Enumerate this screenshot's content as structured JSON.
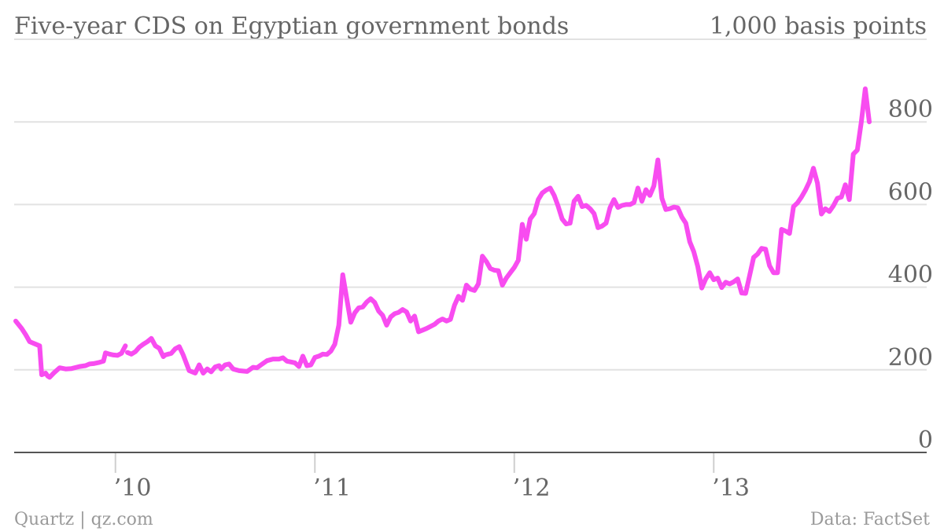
{
  "chart_data": {
    "type": "line",
    "title": "Five-year CDS on Egyptian government bonds",
    "unit_label": "1,000 basis points",
    "ylim": [
      0,
      1000
    ],
    "y_ticks": [
      0,
      200,
      400,
      600,
      800
    ],
    "x_ticks": [
      {
        "label": "’10",
        "value": 2010.0
      },
      {
        "label": "’11",
        "value": 2011.0
      },
      {
        "label": "’12",
        "value": 2012.0
      },
      {
        "label": "’13",
        "value": 2013.0
      }
    ],
    "xlim": [
      2009.5,
      2013.75
    ],
    "grid": true,
    "color": "#f84cf0",
    "series": [
      {
        "segments": [
          [
            [
              2009.5,
              318
            ],
            [
              2009.53,
              300
            ],
            [
              2009.55,
              285
            ],
            [
              2009.57,
              268
            ],
            [
              2009.6,
              262
            ],
            [
              2009.62,
              258
            ],
            [
              2009.63,
              188
            ],
            [
              2009.65,
              192
            ],
            [
              2009.66,
              185
            ],
            [
              2009.67,
              182
            ],
            [
              2009.69,
              192
            ],
            [
              2009.72,
              205
            ],
            [
              2009.75,
              202
            ],
            [
              2009.78,
              203
            ],
            [
              2009.82,
              208
            ],
            [
              2009.85,
              210
            ],
            [
              2009.87,
              214
            ],
            [
              2009.89,
              215
            ],
            [
              2009.92,
              218
            ],
            [
              2009.94,
              221
            ],
            [
              2009.95,
              241
            ],
            [
              2009.97,
              238
            ],
            [
              2009.99,
              236
            ],
            [
              2010.01,
              235
            ],
            [
              2010.03,
              240
            ],
            [
              2010.05,
              258
            ]
          ],
          [
            [
              2010.06,
              242
            ],
            [
              2010.08,
              238
            ],
            [
              2010.1,
              244
            ],
            [
              2010.12,
              255
            ],
            [
              2010.14,
              262
            ],
            [
              2010.16,
              268
            ],
            [
              2010.18,
              276
            ],
            [
              2010.2,
              258
            ],
            [
              2010.22,
              252
            ],
            [
              2010.24,
              232
            ],
            [
              2010.25,
              236
            ],
            [
              2010.28,
              240
            ],
            [
              2010.3,
              251
            ],
            [
              2010.32,
              256
            ],
            [
              2010.34,
              236
            ],
            [
              2010.37,
              198
            ],
            [
              2010.4,
              192
            ],
            [
              2010.42,
              212
            ],
            [
              2010.44,
              192
            ],
            [
              2010.46,
              202
            ],
            [
              2010.48,
              195
            ],
            [
              2010.5,
              207
            ],
            [
              2010.52,
              210
            ],
            [
              2010.53,
              202
            ],
            [
              2010.55,
              212
            ],
            [
              2010.57,
              214
            ],
            [
              2010.59,
              202
            ],
            [
              2010.62,
              198
            ],
            [
              2010.66,
              196
            ],
            [
              2010.69,
              206
            ],
            [
              2010.71,
              205
            ],
            [
              2010.73,
              212
            ],
            [
              2010.76,
              222
            ],
            [
              2010.79,
              226
            ],
            [
              2010.82,
              226
            ],
            [
              2010.84,
              229
            ],
            [
              2010.86,
              221
            ],
            [
              2010.88,
              219
            ],
            [
              2010.9,
              217
            ],
            [
              2010.92,
              208
            ],
            [
              2010.94,
              233
            ],
            [
              2010.96,
              210
            ],
            [
              2010.98,
              212
            ],
            [
              2011.0,
              230
            ],
            [
              2011.02,
              233
            ],
            [
              2011.04,
              238
            ],
            [
              2011.06,
              237
            ],
            [
              2011.08,
              245
            ],
            [
              2011.1,
              262
            ],
            [
              2011.12,
              308
            ],
            [
              2011.14,
              430
            ],
            [
              2011.16,
              372
            ],
            [
              2011.18,
              315
            ],
            [
              2011.2,
              338
            ],
            [
              2011.22,
              350
            ],
            [
              2011.24,
              352
            ],
            [
              2011.26,
              364
            ],
            [
              2011.28,
              372
            ],
            [
              2011.3,
              363
            ],
            [
              2011.32,
              342
            ],
            [
              2011.34,
              332
            ],
            [
              2011.36,
              308
            ],
            [
              2011.38,
              328
            ],
            [
              2011.4,
              336
            ],
            [
              2011.42,
              339
            ],
            [
              2011.44,
              346
            ],
            [
              2011.46,
              340
            ],
            [
              2011.48,
              318
            ],
            [
              2011.5,
              330
            ],
            [
              2011.52,
              292
            ],
            [
              2011.54,
              296
            ],
            [
              2011.56,
              300
            ],
            [
              2011.58,
              305
            ],
            [
              2011.6,
              310
            ],
            [
              2011.62,
              318
            ],
            [
              2011.64,
              323
            ],
            [
              2011.66,
              318
            ],
            [
              2011.68,
              322
            ],
            [
              2011.7,
              356
            ],
            [
              2011.72,
              378
            ],
            [
              2011.74,
              368
            ],
            [
              2011.76,
              405
            ],
            [
              2011.78,
              395
            ],
            [
              2011.8,
              392
            ],
            [
              2011.82,
              408
            ],
            [
              2011.84,
              475
            ],
            [
              2011.86,
              462
            ],
            [
              2011.88,
              445
            ],
            [
              2011.9,
              441
            ],
            [
              2011.92,
              440
            ],
            [
              2011.94,
              405
            ],
            [
              2011.96,
              422
            ],
            [
              2011.98,
              435
            ],
            [
              2012.0,
              448
            ],
            [
              2012.02,
              465
            ],
            [
              2012.04,
              552
            ],
            [
              2012.06,
              516
            ],
            [
              2012.08,
              565
            ],
            [
              2012.1,
              578
            ],
            [
              2012.12,
              612
            ],
            [
              2012.14,
              628
            ],
            [
              2012.16,
              635
            ],
            [
              2012.18,
              640
            ],
            [
              2012.2,
              622
            ],
            [
              2012.22,
              596
            ],
            [
              2012.24,
              565
            ],
            [
              2012.26,
              553
            ],
            [
              2012.28,
              555
            ],
            [
              2012.3,
              608
            ],
            [
              2012.32,
              620
            ],
            [
              2012.34,
              595
            ],
            [
              2012.36,
              598
            ],
            [
              2012.38,
              590
            ],
            [
              2012.4,
              578
            ],
            [
              2012.42,
              544
            ],
            [
              2012.44,
              548
            ],
            [
              2012.46,
              555
            ],
            [
              2012.48,
              592
            ],
            [
              2012.5,
              612
            ],
            [
              2012.52,
              593
            ],
            [
              2012.54,
              598
            ],
            [
              2012.56,
              600
            ],
            [
              2012.58,
              600
            ],
            [
              2012.6,
              605
            ],
            [
              2012.62,
              640
            ],
            [
              2012.64,
              608
            ],
            [
              2012.66,
              636
            ],
            [
              2012.68,
              622
            ],
            [
              2012.7,
              645
            ],
            [
              2012.72,
              708
            ],
            [
              2012.74,
              615
            ],
            [
              2012.76,
              588
            ],
            [
              2012.78,
              590
            ],
            [
              2012.8,
              594
            ],
            [
              2012.82,
              592
            ],
            [
              2012.84,
              570
            ],
            [
              2012.86,
              555
            ],
            [
              2012.88,
              510
            ],
            [
              2012.9,
              486
            ],
            [
              2012.92,
              450
            ],
            [
              2012.94,
              398
            ],
            [
              2012.96,
              420
            ],
            [
              2012.98,
              435
            ],
            [
              2013.0,
              418
            ],
            [
              2013.02,
              422
            ],
            [
              2013.04,
              399
            ],
            [
              2013.06,
              412
            ],
            [
              2013.08,
              408
            ],
            [
              2013.1,
              413
            ],
            [
              2013.12,
              420
            ],
            [
              2013.14,
              386
            ],
            [
              2013.16,
              385
            ],
            [
              2013.18,
              428
            ],
            [
              2013.2,
              472
            ],
            [
              2013.22,
              480
            ],
            [
              2013.24,
              494
            ],
            [
              2013.26,
              492
            ],
            [
              2013.28,
              452
            ],
            [
              2013.3,
              435
            ],
            [
              2013.32,
              435
            ],
            [
              2013.34,
              540
            ],
            [
              2013.36,
              536
            ],
            [
              2013.38,
              530
            ],
            [
              2013.4,
              595
            ],
            [
              2013.42,
              604
            ],
            [
              2013.44,
              618
            ],
            [
              2013.46,
              635
            ],
            [
              2013.48,
              655
            ],
            [
              2013.5,
              688
            ],
            [
              2013.52,
              652
            ],
            [
              2013.54,
              577
            ],
            [
              2013.56,
              590
            ],
            [
              2013.58,
              583
            ],
            [
              2013.6,
              597
            ],
            [
              2013.62,
              615
            ],
            [
              2013.64,
              618
            ],
            [
              2013.66,
              648
            ],
            [
              2013.68,
              612
            ],
            [
              2013.7,
              722
            ],
            [
              2013.72,
              732
            ],
            [
              2013.74,
              800
            ],
            [
              2013.76,
              880
            ],
            [
              2013.78,
              800
            ]
          ]
        ]
      }
    ]
  },
  "footer": {
    "left": "Quartz | qz.com",
    "right": "Data: FactSet"
  }
}
